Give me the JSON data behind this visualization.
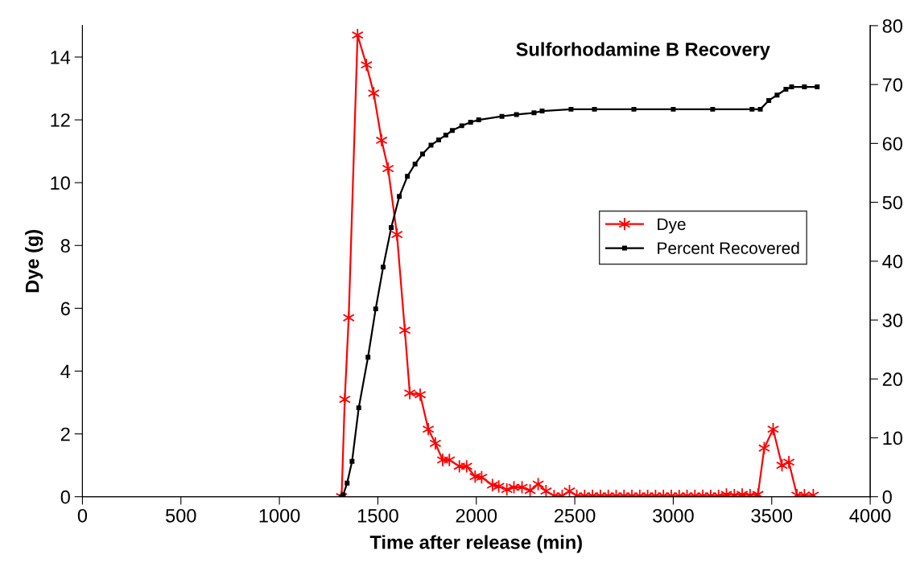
{
  "chart_data": {
    "type": "line",
    "title": "Sulforhodamine B Recovery",
    "xlabel": "Time after release (min)",
    "ylabel": "Dye (g)",
    "xlim": [
      0,
      4000
    ],
    "xticks": [
      0,
      500,
      1000,
      1500,
      2000,
      2500,
      3000,
      3500,
      4000
    ],
    "ylim": [
      0,
      15
    ],
    "yticks": [
      0,
      2,
      4,
      6,
      8,
      10,
      12,
      14
    ],
    "y2lim": [
      0,
      80
    ],
    "y2ticks": [
      0,
      10,
      20,
      30,
      40,
      50,
      60,
      70,
      80
    ],
    "grid": false,
    "legend": "right",
    "line_style": "solid",
    "series": [
      {
        "name": "Dye",
        "color": "#ff0000",
        "marker": "cross",
        "x": [
          1316,
          1332,
          1352,
          1397,
          1442,
          1479,
          1519,
          1552,
          1597,
          1637,
          1662,
          1715,
          1756,
          1792,
          1829,
          1863,
          1914,
          1951,
          1994,
          2027,
          2082,
          2114,
          2155,
          2191,
          2232,
          2273,
          2314,
          2354,
          2395,
          2436,
          2473,
          2510,
          2550,
          2590,
          2630,
          2670,
          2710,
          2750,
          2790,
          2830,
          2870,
          2910,
          2950,
          2990,
          3030,
          3070,
          3110,
          3150,
          3190,
          3230,
          3270,
          3310,
          3350,
          3390,
          3430,
          3462,
          3507,
          3552,
          3587,
          3628,
          3666,
          3711
        ],
        "values": [
          0,
          3.1,
          5.7,
          14.7,
          13.75,
          12.85,
          11.35,
          10.45,
          8.35,
          5.3,
          3.3,
          3.25,
          2.15,
          1.7,
          1.17,
          1.17,
          0.97,
          0.97,
          0.64,
          0.62,
          0.37,
          0.33,
          0.23,
          0.3,
          0.3,
          0.2,
          0.4,
          0.18,
          0.03,
          0.03,
          0.18,
          0.03,
          0.03,
          0.03,
          0.03,
          0.03,
          0.03,
          0.03,
          0.03,
          0.03,
          0.03,
          0.03,
          0.03,
          0.03,
          0.03,
          0.03,
          0.03,
          0.03,
          0.03,
          0.03,
          0.07,
          0.05,
          0.07,
          0.05,
          0.07,
          1.55,
          2.15,
          1.0,
          1.1,
          0.05,
          0.05,
          0.05
        ]
      },
      {
        "name": "Percent Recovered",
        "color": "#000000",
        "marker": "square",
        "axis": "y2",
        "x": [
          1316,
          1324,
          1344,
          1369,
          1403,
          1450,
          1489,
          1527,
          1568,
          1609,
          1650,
          1689,
          1727,
          1770,
          1809,
          1845,
          1878,
          1926,
          1971,
          2012,
          2130,
          2204,
          2293,
          2334,
          2481,
          2600,
          2800,
          3000,
          3200,
          3400,
          3442,
          3485,
          3527,
          3572,
          3601,
          3666,
          3731
        ],
        "values": [
          0,
          0.3,
          2.3,
          6,
          15.1,
          23.7,
          31.9,
          39,
          45.7,
          51,
          54.4,
          56.5,
          58.2,
          59.7,
          60.6,
          61.4,
          62.2,
          63,
          63.6,
          64,
          64.6,
          64.9,
          65.2,
          65.5,
          65.8,
          65.8,
          65.8,
          65.8,
          65.8,
          65.8,
          65.8,
          67.3,
          68.2,
          69.2,
          69.6,
          69.6,
          69.6
        ]
      }
    ]
  }
}
